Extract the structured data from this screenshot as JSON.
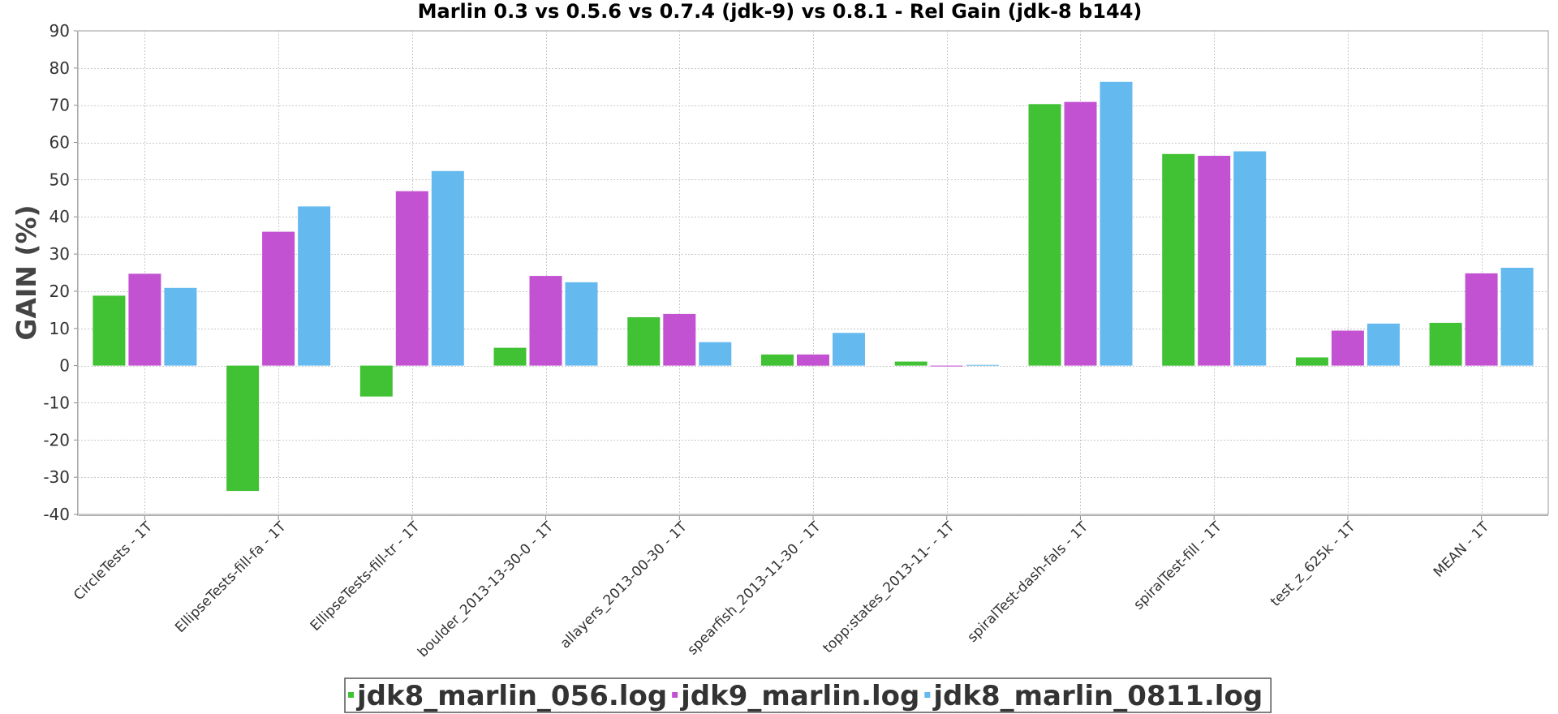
{
  "chart_data": {
    "type": "bar",
    "title": "Marlin 0.3 vs 0.5.6 vs 0.7.4 (jdk-9) vs 0.8.1 - Rel Gain (jdk-8 b144)",
    "xlabel": "",
    "ylabel": "GAIN (%)",
    "ylim": [
      -40,
      90
    ],
    "yticks": [
      90,
      80,
      70,
      60,
      50,
      40,
      30,
      20,
      10,
      0,
      -10,
      -20,
      -30,
      -40
    ],
    "grid": true,
    "legend_position": "bottom",
    "categories": [
      "CircleTests - 1T",
      "EllipseTests-fill-fa - 1T",
      "EllipseTests-fill-tr - 1T",
      "boulder_2013-13-30-0 - 1T",
      "allayers_2013-00-30 - 1T",
      "spearfish_2013-11-30 - 1T",
      "topp:states_2013-11- - 1T",
      "spiralTest-dash-fals - 1T",
      "spiralTest-fill - 1T",
      "test_z_625k - 1T",
      "MEAN - 1T"
    ],
    "series": [
      {
        "name": "jdk8_marlin_056.log",
        "color": "#41c235",
        "values": [
          18.8,
          -33.7,
          -8.3,
          4.8,
          13.0,
          3.0,
          1.1,
          70.3,
          56.9,
          2.2,
          11.5
        ]
      },
      {
        "name": "jdk9_marlin.log",
        "color": "#c352d3",
        "values": [
          24.7,
          36.0,
          46.9,
          24.1,
          13.9,
          3.0,
          0.0,
          70.9,
          56.4,
          9.4,
          24.8
        ]
      },
      {
        "name": "jdk8_marlin_0811.log",
        "color": "#64b9ef",
        "values": [
          20.9,
          42.8,
          52.3,
          22.4,
          6.3,
          8.8,
          0.2,
          76.3,
          57.6,
          11.3,
          26.3
        ]
      }
    ]
  }
}
